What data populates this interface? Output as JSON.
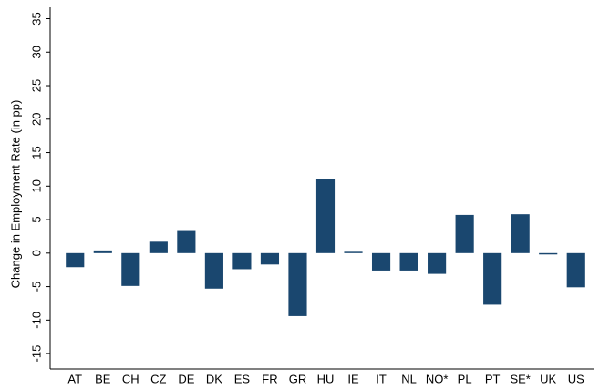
{
  "chart_data": {
    "type": "bar",
    "y_label": "Change in Employment Rate (in pp)",
    "categories": [
      "AT",
      "BE",
      "CH",
      "CZ",
      "DE",
      "DK",
      "ES",
      "FR",
      "GR",
      "HU",
      "IE",
      "IT",
      "NL",
      "NO*",
      "PL",
      "PT",
      "SE*",
      "UK",
      "US"
    ],
    "values": [
      -2.1,
      0.4,
      -4.9,
      1.7,
      3.3,
      -5.3,
      -2.4,
      -1.7,
      -9.4,
      11,
      0.2,
      -2.6,
      -2.6,
      -3.1,
      5.7,
      -7.7,
      5.8,
      -0.2,
      -5.1
    ],
    "color": "#1a476f",
    "ylim": [
      -17.3,
      36.7
    ],
    "yticks": [
      -15,
      -10,
      -5,
      0,
      5,
      10,
      15,
      20,
      25,
      30,
      35
    ],
    "grid": false
  }
}
